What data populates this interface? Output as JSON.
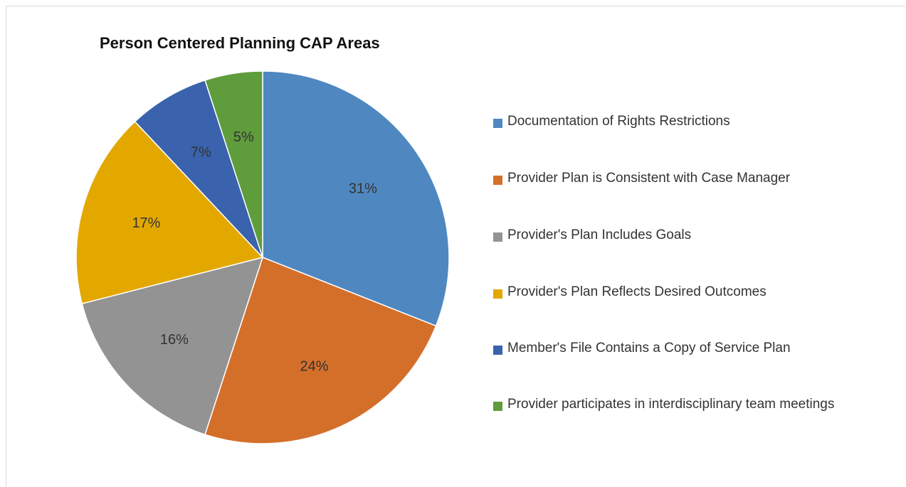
{
  "chart_data": {
    "type": "pie",
    "title": "Person Centered Planning CAP Areas",
    "categories": [
      "Documentation of Rights Restrictions",
      "Provider Plan is Consistent with Case Manager",
      "Provider's Plan Includes Goals",
      "Provider's Plan Reflects Desired Outcomes",
      "Member's File Contains a Copy of Service Plan",
      "Provider participates in interdisciplinary team meetings"
    ],
    "values": [
      31,
      24,
      16,
      17,
      7,
      5
    ],
    "value_labels": [
      "31%",
      "24%",
      "16%",
      "17%",
      "7%",
      "5%"
    ],
    "colors": [
      "#4f88c0",
      "#d46f2a",
      "#939393",
      "#e3a800",
      "#3a62ad",
      "#5f9c3c"
    ],
    "legend": "right"
  }
}
